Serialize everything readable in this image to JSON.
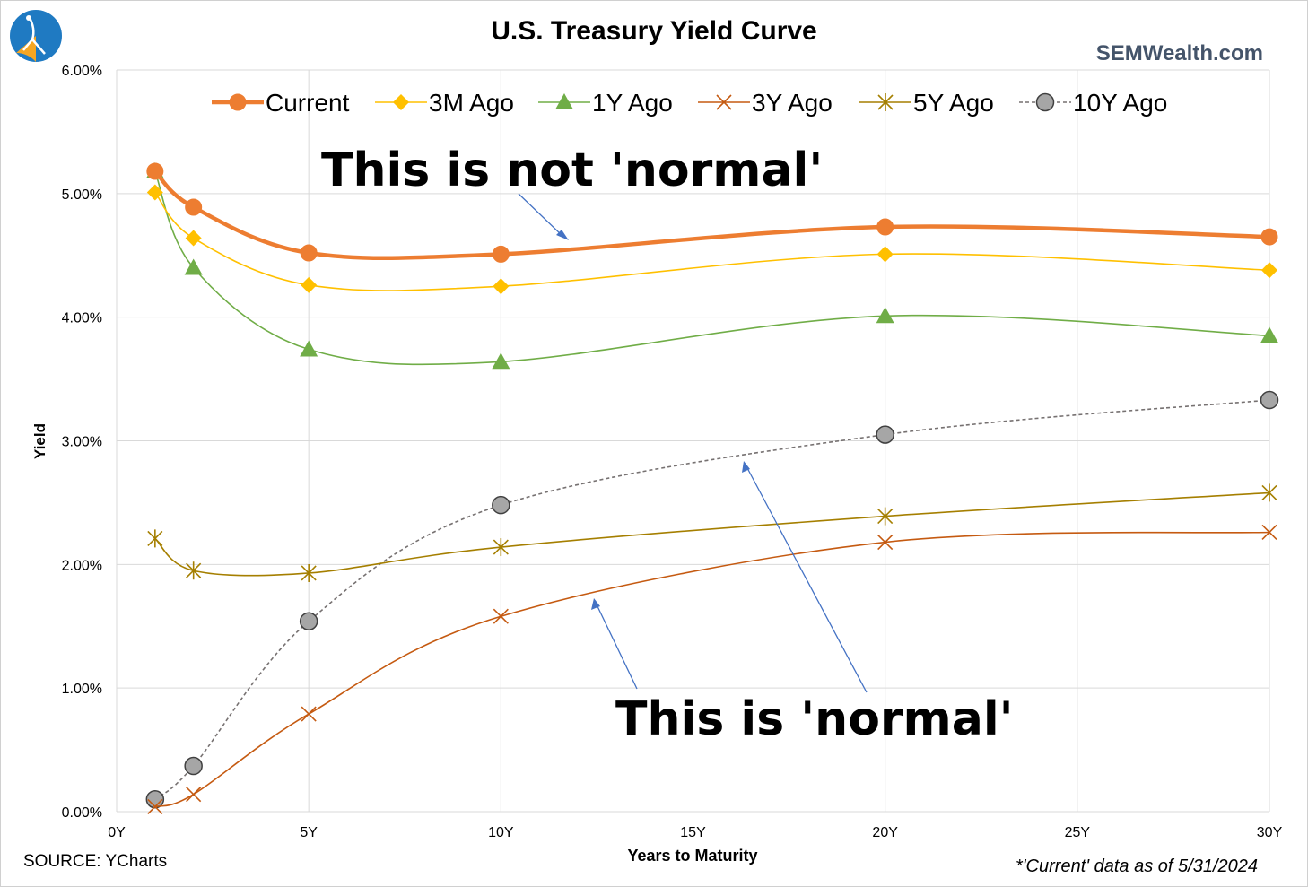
{
  "header": {
    "title": "U.S. Treasury Yield Curve",
    "brand": "SEMWealth.com"
  },
  "footer": {
    "source": "SOURCE: YCharts",
    "note": "*'Current' data as of 5/31/2024"
  },
  "annotations": {
    "not_normal": "This is not 'normal'",
    "normal": "This is 'normal'"
  },
  "logo": {
    "icon": "semwealth-logo-icon",
    "colors": [
      "#1f7ac2",
      "#f5a623",
      "#ffffff"
    ]
  },
  "chart_data": {
    "type": "line",
    "title": "U.S. Treasury Yield Curve",
    "xlabel": "Years to Maturity",
    "ylabel": "Yield",
    "xlim": [
      0,
      30
    ],
    "ylim": [
      0,
      6
    ],
    "x_ticks": [
      0,
      5,
      10,
      15,
      20,
      25,
      30
    ],
    "x_tick_labels": [
      "0Y",
      "5Y",
      "10Y",
      "15Y",
      "20Y",
      "25Y",
      "30Y"
    ],
    "y_ticks": [
      0,
      1,
      2,
      3,
      4,
      5,
      6
    ],
    "y_tick_labels": [
      "0.00%",
      "1.00%",
      "2.00%",
      "3.00%",
      "4.00%",
      "5.00%",
      "6.00%"
    ],
    "grid": true,
    "legend_position": "top",
    "x": [
      1,
      2,
      5,
      10,
      20,
      30
    ],
    "series": [
      {
        "name": "Current",
        "color": "#ed7d31",
        "marker": "circle",
        "dash": "solid",
        "values": [
          5.18,
          4.89,
          4.52,
          4.51,
          4.73,
          4.65
        ]
      },
      {
        "name": "3M Ago",
        "color": "#ffc000",
        "marker": "diamond",
        "dash": "solid",
        "values": [
          5.01,
          4.64,
          4.26,
          4.25,
          4.51,
          4.38
        ]
      },
      {
        "name": "1Y Ago",
        "color": "#70ad47",
        "marker": "triangle",
        "dash": "solid",
        "values": [
          5.18,
          4.4,
          3.74,
          3.64,
          4.01,
          3.85
        ]
      },
      {
        "name": "3Y Ago",
        "color": "#c55a11",
        "marker": "x",
        "dash": "solid",
        "values": [
          0.04,
          0.14,
          0.79,
          1.58,
          2.18,
          2.26
        ]
      },
      {
        "name": "5Y Ago",
        "color": "#a57f00",
        "marker": "star",
        "dash": "solid",
        "values": [
          2.21,
          1.95,
          1.93,
          2.14,
          2.39,
          2.58
        ]
      },
      {
        "name": "10Y Ago",
        "color": "#767171",
        "marker": "circle-gray",
        "dash": "dashed",
        "values": [
          0.1,
          0.37,
          1.54,
          2.48,
          3.05,
          3.33
        ]
      }
    ]
  }
}
